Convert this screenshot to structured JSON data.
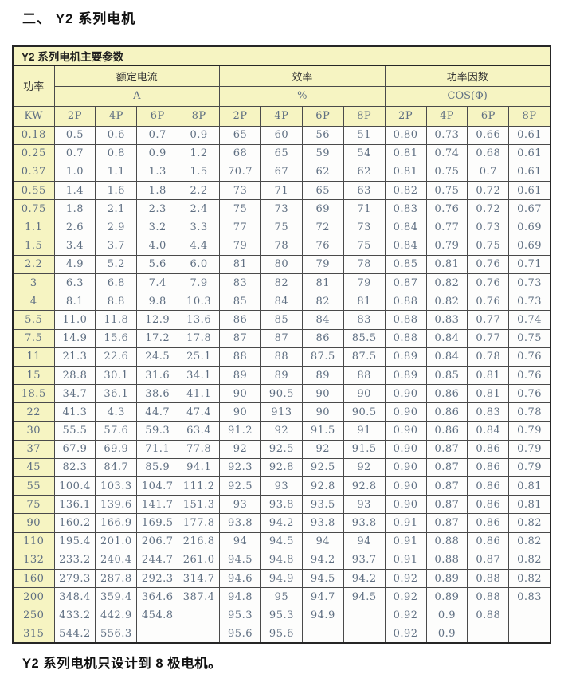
{
  "page": {
    "heading": "二、 Y2 系列电机",
    "footnote": "Y2 系列电机只设计到 8 极电机。"
  },
  "table": {
    "caption": "Y2 系列电机主要参数",
    "col_groups": [
      {
        "label": "功率",
        "unit": "KW"
      },
      {
        "label": "额定电流",
        "unit": "A"
      },
      {
        "label": "效率",
        "unit": "%"
      },
      {
        "label": "功率因数",
        "unit": "COS(Φ)"
      }
    ],
    "pole_headers": [
      "2P",
      "4P",
      "6P",
      "8P"
    ],
    "rows": [
      {
        "kw": "0.18",
        "a": [
          "0.5",
          "0.6",
          "0.7",
          "0.9"
        ],
        "eff": [
          "65",
          "60",
          "56",
          "51"
        ],
        "cos": [
          "0.80",
          "0.73",
          "0.66",
          "0.61"
        ]
      },
      {
        "kw": "0.25",
        "a": [
          "0.7",
          "0.8",
          "0.9",
          "1.2"
        ],
        "eff": [
          "68",
          "65",
          "59",
          "54"
        ],
        "cos": [
          "0.81",
          "0.74",
          "0.68",
          "0.61"
        ]
      },
      {
        "kw": "0.37",
        "a": [
          "1.0",
          "1.1",
          "1.3",
          "1.5"
        ],
        "eff": [
          "70.7",
          "67",
          "62",
          "62"
        ],
        "cos": [
          "0.81",
          "0.75",
          "0.7",
          "0.61"
        ]
      },
      {
        "kw": "0.55",
        "a": [
          "1.4",
          "1.6",
          "1.8",
          "2.2"
        ],
        "eff": [
          "73",
          "71",
          "65",
          "63"
        ],
        "cos": [
          "0.82",
          "0.75",
          "0.72",
          "0.61"
        ]
      },
      {
        "kw": "0.75",
        "a": [
          "1.8",
          "2.1",
          "2.3",
          "2.4"
        ],
        "eff": [
          "75",
          "73",
          "69",
          "71"
        ],
        "cos": [
          "0.83",
          "0.76",
          "0.72",
          "0.67"
        ]
      },
      {
        "kw": "1.1",
        "a": [
          "2.6",
          "2.9",
          "3.2",
          "3.3"
        ],
        "eff": [
          "77",
          "75",
          "72",
          "73"
        ],
        "cos": [
          "0.84",
          "0.77",
          "0.73",
          "0.69"
        ]
      },
      {
        "kw": "1.5",
        "a": [
          "3.4",
          "3.7",
          "4.0",
          "4.4"
        ],
        "eff": [
          "79",
          "78",
          "76",
          "75"
        ],
        "cos": [
          "0.84",
          "0.79",
          "0.75",
          "0.69"
        ]
      },
      {
        "kw": "2.2",
        "a": [
          "4.9",
          "5.2",
          "5.6",
          "6.0"
        ],
        "eff": [
          "81",
          "80",
          "79",
          "78"
        ],
        "cos": [
          "0.85",
          "0.81",
          "0.76",
          "0.71"
        ]
      },
      {
        "kw": "3",
        "a": [
          "6.3",
          "6.8",
          "7.4",
          "7.9"
        ],
        "eff": [
          "83",
          "82",
          "81",
          "79"
        ],
        "cos": [
          "0.87",
          "0.82",
          "0.76",
          "0.73"
        ]
      },
      {
        "kw": "4",
        "a": [
          "8.1",
          "8.8",
          "9.8",
          "10.3"
        ],
        "eff": [
          "85",
          "84",
          "82",
          "81"
        ],
        "cos": [
          "0.88",
          "0.82",
          "0.76",
          "0.73"
        ]
      },
      {
        "kw": "5.5",
        "a": [
          "11.0",
          "11.8",
          "12.9",
          "13.6"
        ],
        "eff": [
          "86",
          "85",
          "84",
          "83"
        ],
        "cos": [
          "0.88",
          "0.83",
          "0.77",
          "0.74"
        ]
      },
      {
        "kw": "7.5",
        "a": [
          "14.9",
          "15.6",
          "17.2",
          "17.8"
        ],
        "eff": [
          "87",
          "87",
          "86",
          "85.5"
        ],
        "cos": [
          "0.88",
          "0.84",
          "0.77",
          "0.75"
        ]
      },
      {
        "kw": "11",
        "a": [
          "21.3",
          "22.6",
          "24.5",
          "25.1"
        ],
        "eff": [
          "88",
          "88",
          "87.5",
          "87.5"
        ],
        "cos": [
          "0.89",
          "0.84",
          "0.78",
          "0.76"
        ]
      },
      {
        "kw": "15",
        "a": [
          "28.8",
          "30.1",
          "31.6",
          "34.1"
        ],
        "eff": [
          "89",
          "89",
          "89",
          "88"
        ],
        "cos": [
          "0.89",
          "0.85",
          "0.81",
          "0.76"
        ]
      },
      {
        "kw": "18.5",
        "a": [
          "34.7",
          "36.1",
          "38.6",
          "41.1"
        ],
        "eff": [
          "90",
          "90.5",
          "90",
          "90"
        ],
        "cos": [
          "0.90",
          "0.86",
          "0.81",
          "0.76"
        ]
      },
      {
        "kw": "22",
        "a": [
          "41.3",
          "4.3",
          "44.7",
          "47.4"
        ],
        "eff": [
          "90",
          "913",
          "90",
          "90.5"
        ],
        "cos": [
          "0.90",
          "0.86",
          "0.83",
          "0.78"
        ]
      },
      {
        "kw": "30",
        "a": [
          "55.5",
          "57.6",
          "59.3",
          "63.4"
        ],
        "eff": [
          "91.2",
          "92",
          "91.5",
          "91"
        ],
        "cos": [
          "0.90",
          "0.86",
          "0.84",
          "0.79"
        ]
      },
      {
        "kw": "37",
        "a": [
          "67.9",
          "69.9",
          "71.1",
          "77.8"
        ],
        "eff": [
          "92",
          "92.5",
          "92",
          "91.5"
        ],
        "cos": [
          "0.90",
          "0.87",
          "0.86",
          "0.79"
        ]
      },
      {
        "kw": "45",
        "a": [
          "82.3",
          "84.7",
          "85.9",
          "94.1"
        ],
        "eff": [
          "92.3",
          "92.8",
          "92.5",
          "92"
        ],
        "cos": [
          "0.90",
          "0.87",
          "0.86",
          "0.79"
        ]
      },
      {
        "kw": "55",
        "a": [
          "100.4",
          "103.3",
          "104.7",
          "111.2"
        ],
        "eff": [
          "92.5",
          "93",
          "92.8",
          "92.8"
        ],
        "cos": [
          "0.90",
          "0.87",
          "0.86",
          "0.81"
        ]
      },
      {
        "kw": "75",
        "a": [
          "136.1",
          "139.6",
          "141.7",
          "151.3"
        ],
        "eff": [
          "93",
          "93.8",
          "93.5",
          "93"
        ],
        "cos": [
          "0.90",
          "0.87",
          "0.86",
          "0.81"
        ]
      },
      {
        "kw": "90",
        "a": [
          "160.2",
          "166.9",
          "169.5",
          "177.8"
        ],
        "eff": [
          "93.8",
          "94.2",
          "93.8",
          "93.8"
        ],
        "cos": [
          "0.91",
          "0.87",
          "0.86",
          "0.82"
        ]
      },
      {
        "kw": "110",
        "a": [
          "195.4",
          "201.0",
          "206.7",
          "216.8"
        ],
        "eff": [
          "94",
          "94.5",
          "94",
          "94"
        ],
        "cos": [
          "0.91",
          "0.88",
          "0.86",
          "0.82"
        ]
      },
      {
        "kw": "132",
        "a": [
          "233.2",
          "240.4",
          "244.7",
          "261.0"
        ],
        "eff": [
          "94.5",
          "94.8",
          "94.2",
          "93.7"
        ],
        "cos": [
          "0.91",
          "0.88",
          "0.87",
          "0.82"
        ]
      },
      {
        "kw": "160",
        "a": [
          "279.3",
          "287.8",
          "292.3",
          "314.7"
        ],
        "eff": [
          "94.6",
          "94.9",
          "94.5",
          "94.2"
        ],
        "cos": [
          "0.92",
          "0.89",
          "0.88",
          "0.82"
        ]
      },
      {
        "kw": "200",
        "a": [
          "348.4",
          "359.4",
          "364.6",
          "387.4"
        ],
        "eff": [
          "94.8",
          "95",
          "94.7",
          "94.5"
        ],
        "cos": [
          "0.92",
          "0.89",
          "0.88",
          "0.83"
        ]
      },
      {
        "kw": "250",
        "a": [
          "433.2",
          "442.9",
          "454.8",
          ""
        ],
        "eff": [
          "95.3",
          "95.3",
          "94.9",
          ""
        ],
        "cos": [
          "0.92",
          "0.9",
          "0.88",
          ""
        ]
      },
      {
        "kw": "315",
        "a": [
          "544.2",
          "556.3",
          "",
          ""
        ],
        "eff": [
          "95.6",
          "95.6",
          "",
          ""
        ],
        "cos": [
          "0.92",
          "0.9",
          "",
          ""
        ]
      }
    ]
  },
  "colors": {
    "header_bg": "#f6f4c2",
    "cell_bg": "#fdfdfc",
    "grid_border": "#4a4a4a",
    "outer_border": "#262626",
    "value_text": "#5f6f82",
    "header_text": "#333333",
    "title_text": "#111111"
  }
}
